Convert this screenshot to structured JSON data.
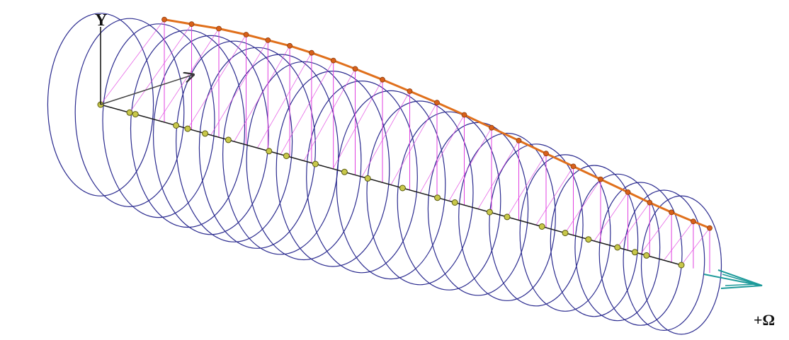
{
  "labels": {
    "y_axis": "Y",
    "spin_axis": "+Ω"
  },
  "colors": {
    "ellipse": "#2b2b8f",
    "shaft": "#1a1a1a",
    "node_fill": "#c8c84a",
    "node_stroke": "#5a5a10",
    "whirl_curve": "#e0701c",
    "whirl_node": "#d8601a",
    "connector": "#e040e0",
    "spin_arrow": "#1d9a9a",
    "axis": "#111111"
  },
  "stations": [
    {
      "t": 0.0,
      "r": 0.8
    },
    {
      "t": 0.05,
      "r": 0.86
    },
    {
      "t": 0.1,
      "r": 0.92
    },
    {
      "t": 0.15,
      "r": 0.96
    },
    {
      "t": 0.19,
      "r": 0.98
    },
    {
      "t": 0.23,
      "r": 1.0
    },
    {
      "t": 0.27,
      "r": 1.0
    },
    {
      "t": 0.31,
      "r": 0.99
    },
    {
      "t": 0.35,
      "r": 0.97
    },
    {
      "t": 0.4,
      "r": 0.94
    },
    {
      "t": 0.45,
      "r": 0.9
    },
    {
      "t": 0.5,
      "r": 0.86
    },
    {
      "t": 0.55,
      "r": 0.81
    },
    {
      "t": 0.6,
      "r": 0.75
    },
    {
      "t": 0.65,
      "r": 0.69
    },
    {
      "t": 0.7,
      "r": 0.63
    },
    {
      "t": 0.75,
      "r": 0.57
    },
    {
      "t": 0.8,
      "r": 0.51
    },
    {
      "t": 0.85,
      "r": 0.45
    },
    {
      "t": 0.89,
      "r": 0.4
    },
    {
      "t": 0.93,
      "r": 0.36
    },
    {
      "t": 0.97,
      "r": 0.33
    },
    {
      "t": 1.0,
      "r": 0.31
    }
  ],
  "shaft_nodes": [
    0.0,
    0.05,
    0.06,
    0.13,
    0.15,
    0.18,
    0.22,
    0.29,
    0.32,
    0.37,
    0.42,
    0.46,
    0.52,
    0.58,
    0.61,
    0.67,
    0.7,
    0.76,
    0.8,
    0.84,
    0.89,
    0.92,
    0.94,
    1.0
  ]
}
